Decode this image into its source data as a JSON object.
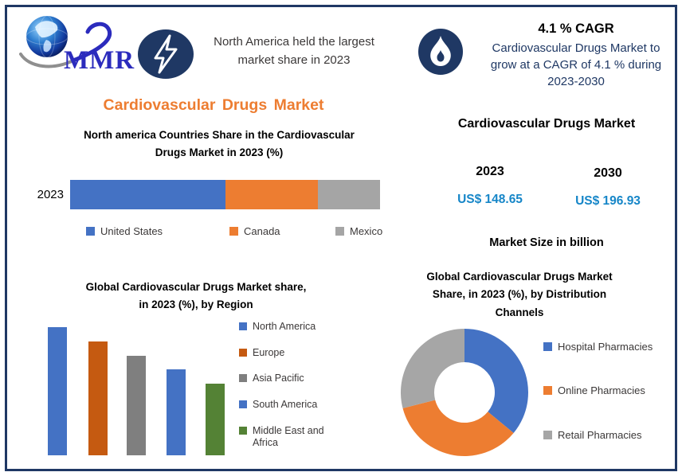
{
  "brand": {
    "logo_text": "MMR"
  },
  "header": {
    "left_callout": {
      "icon": "lightning-icon",
      "text": "North America held the largest market share in 2023"
    },
    "right_callout": {
      "icon": "flame-icon",
      "title": "4.1 % CAGR",
      "text": "Cardiovascular Drugs Market to grow at a CAGR of 4.1 % during 2023-2030"
    }
  },
  "main_title": "Cardiovascular Drugs Market",
  "market_size": {
    "title": "Cardiovascular Drugs Market",
    "columns": [
      {
        "year": "2023",
        "value": "US$ 148.65"
      },
      {
        "year": "2030",
        "value": "US$ 196.93"
      }
    ],
    "caption": "Market Size in billion"
  },
  "colors": {
    "navy": "#1f3864",
    "accent_orange": "#ed7d31",
    "value_blue": "#1686c8",
    "callout_text": "#3b3838",
    "logo_blue": "#2b2bbd"
  },
  "chart_data": [
    {
      "type": "bar",
      "subtype": "horizontal-stacked",
      "title": "North america Countries Share in the Cardiovascular Drugs Market in 2023 (%)",
      "title_lines": [
        "North america Countries Share in the  Cardiovascular",
        "Drugs Market in 2023 (%)"
      ],
      "categories": [
        "2023"
      ],
      "series": [
        {
          "name": "United States",
          "values": [
            50
          ],
          "color": "#4472c4"
        },
        {
          "name": "Canada",
          "values": [
            30
          ],
          "color": "#ed7d31"
        },
        {
          "name": "Mexico",
          "values": [
            20
          ],
          "color": "#a5a5a5"
        }
      ],
      "xlim": [
        0,
        100
      ],
      "grid": false,
      "legend_position": "bottom"
    },
    {
      "type": "bar",
      "subtype": "vertical",
      "title": "Global Cardiovascular Drugs Market share, in 2023 (%), by Region",
      "title_lines": [
        "Global Cardiovascular Drugs Market share,",
        "in 2023 (%), by Region"
      ],
      "categories": [
        "North America",
        "Europe",
        "Asia Pacific",
        "South America",
        "Middle East and Africa"
      ],
      "values": [
        36,
        32,
        28,
        24,
        20
      ],
      "colors": [
        "#4472c4",
        "#c55a11",
        "#7f7f7f",
        "#4472c4",
        "#548235"
      ],
      "ylim": [
        0,
        40
      ],
      "grid": false,
      "axis_ticks_visible": false,
      "legend_position": "right"
    },
    {
      "type": "pie",
      "subtype": "donut",
      "title": "Global Cardiovascular Drugs Market Share, in 2023 (%), by Distribution Channels",
      "title_lines": [
        "Global Cardiovascular Drugs Market",
        "Share, in 2023 (%), by Distribution",
        "Channels"
      ],
      "categories": [
        "Hospital Pharmacies",
        "Online Pharmacies",
        "Retail Pharmacies"
      ],
      "values": [
        36,
        35,
        29
      ],
      "colors": [
        "#4472c4",
        "#ed7d31",
        "#a6a6a6"
      ],
      "start_angle_deg": 0,
      "legend_position": "right"
    }
  ]
}
